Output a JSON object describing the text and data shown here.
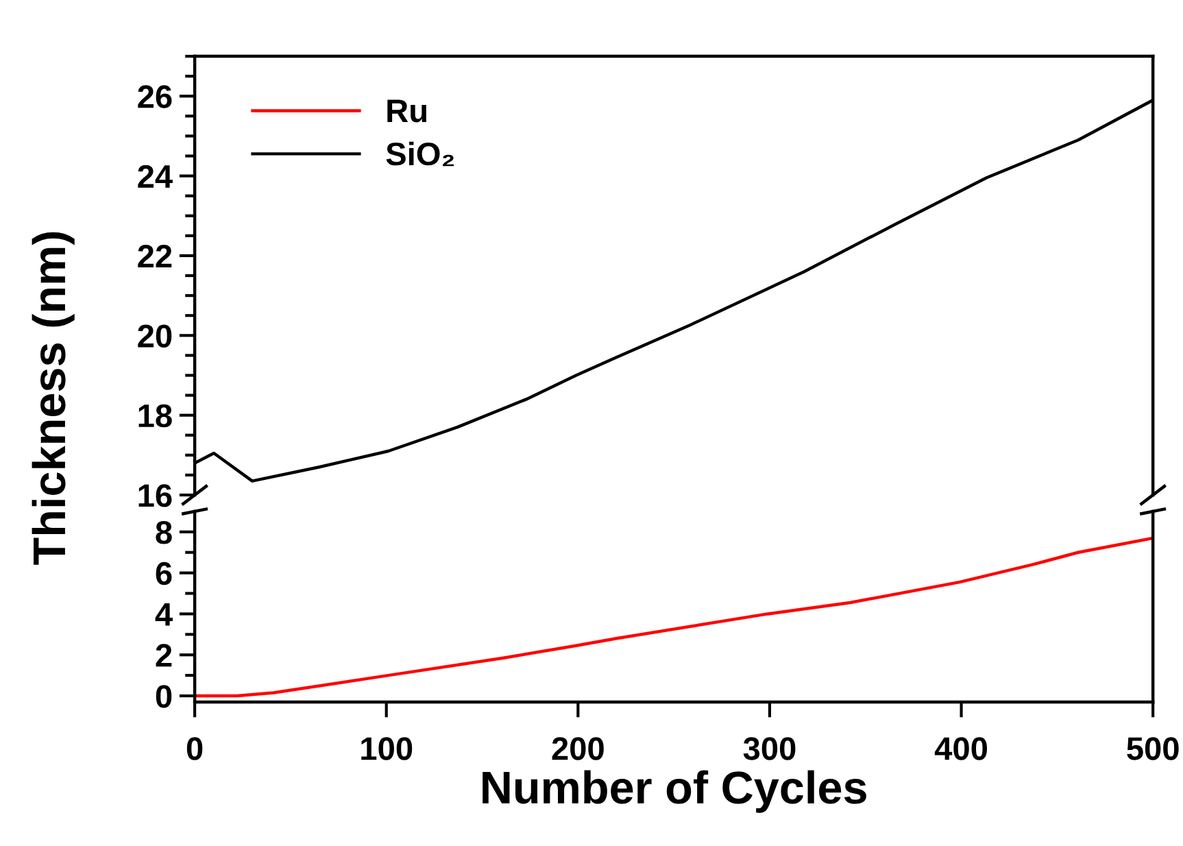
{
  "chart_data": [
    {
      "type": "line",
      "ylabel": "Thickness (nm)",
      "xlim": [
        0,
        500
      ],
      "ylim": [
        16,
        27
      ],
      "tick_labels": "y",
      "legend": "top left",
      "line_style": "solid",
      "marker": "none",
      "yticks": [
        16,
        {
          "value": 16.5,
          "label": null
        },
        {
          "value": 17,
          "label": null
        },
        {
          "value": 17.5,
          "label": null
        },
        18,
        {
          "value": 18.5,
          "label": null
        },
        {
          "value": 19,
          "label": null
        },
        {
          "value": 19.5,
          "label": null
        },
        20,
        {
          "value": 20.5,
          "label": null
        },
        {
          "value": 21,
          "label": null
        },
        {
          "value": 21.5,
          "label": null
        },
        22,
        {
          "value": 22.5,
          "label": null
        },
        {
          "value": 23,
          "label": null
        },
        {
          "value": 23.5,
          "label": null
        },
        24,
        {
          "value": 24.5,
          "label": null
        },
        {
          "value": 25,
          "label": null
        },
        {
          "value": 25.5,
          "label": null
        },
        26,
        {
          "value": 26.5,
          "label": null
        },
        {
          "value": 27,
          "label": null
        }
      ],
      "series": [
        {
          "name": "SiO₂",
          "color": "#000000",
          "x": [
            0,
            10,
            30,
            65,
            101,
            137,
            173,
            199,
            220,
            258,
            318,
            366,
            413,
            461,
            500
          ],
          "values": [
            16.8,
            17.05,
            16.35,
            16.7,
            17.1,
            17.7,
            18.4,
            19.0,
            19.45,
            20.25,
            21.6,
            22.8,
            23.95,
            24.9,
            25.9
          ]
        }
      ]
    },
    {
      "type": "line",
      "xlabel": "Number of Cycles",
      "xlim": [
        0,
        500
      ],
      "ylim": [
        -0.3,
        9
      ],
      "xticks": [
        0,
        100,
        200,
        300,
        400,
        500
      ],
      "line_style": "solid",
      "marker": "none",
      "yticks": [
        0,
        {
          "value": 1,
          "label": null
        },
        2,
        {
          "value": 3,
          "label": null
        },
        4,
        {
          "value": 5,
          "label": null
        },
        6,
        {
          "value": 7,
          "label": null
        },
        8
      ],
      "series": [
        {
          "name": "Ru",
          "color": "#ff0000",
          "x": [
            0,
            22,
            41,
            101,
            161,
            199,
            220,
            299,
            342,
            399,
            437,
            461,
            500
          ],
          "values": [
            0,
            0,
            0.15,
            1.0,
            1.85,
            2.45,
            2.8,
            4.0,
            4.55,
            5.55,
            6.4,
            7.0,
            7.7
          ]
        }
      ]
    }
  ]
}
